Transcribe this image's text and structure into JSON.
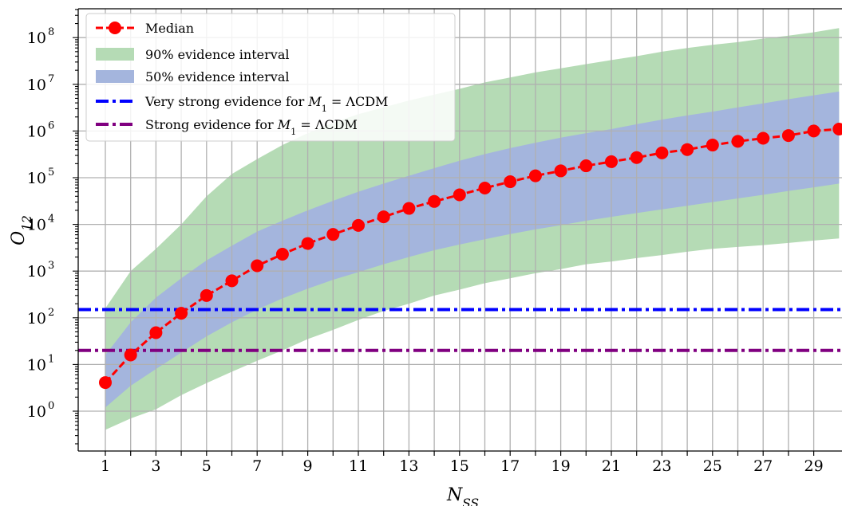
{
  "chart_data": {
    "type": "line",
    "xlabel": "N_SS",
    "ylabel": "O_12",
    "y_scale": "log",
    "xlim": [
      0,
      29.8
    ],
    "ylim_log10": [
      -0.95,
      8.6
    ],
    "grid": true,
    "legend_placement": "top-left",
    "x_ticks": [
      1,
      3,
      5,
      7,
      9,
      11,
      13,
      15,
      17,
      19,
      21,
      23,
      25,
      27,
      29
    ],
    "y_tick_exponents": [
      0,
      1,
      2,
      3,
      4,
      5,
      6,
      7,
      8
    ],
    "series": [
      {
        "name": "Median",
        "color": "#ff0000",
        "x": [
          1,
          2,
          3,
          4,
          5,
          6,
          7,
          8,
          9,
          10,
          11,
          12,
          13,
          14,
          15,
          16,
          17,
          18,
          19,
          20,
          21,
          22,
          23,
          24,
          25,
          26,
          27,
          28,
          29,
          30
        ],
        "y": [
          4.1,
          16,
          48,
          125,
          300,
          620,
          1300,
          2300,
          3900,
          6100,
          9500,
          14500,
          22000,
          31000,
          43000,
          60000,
          82000,
          110000,
          140000,
          180000,
          220000,
          270000,
          340000,
          400000,
          500000,
          600000,
          700000,
          800000,
          1000000,
          1100000
        ]
      }
    ],
    "bands": [
      {
        "name": "90% evidence interval",
        "color": "#b5dbb5",
        "x": [
          1,
          2,
          3,
          4,
          5,
          6,
          7,
          8,
          9,
          10,
          11,
          12,
          13,
          14,
          15,
          16,
          17,
          18,
          19,
          20,
          21,
          22,
          23,
          24,
          25,
          26,
          27,
          28,
          29,
          30
        ],
        "lower": [
          0.4,
          0.7,
          1.1,
          2.2,
          4.0,
          7.0,
          12,
          20,
          35,
          55,
          90,
          140,
          200,
          300,
          400,
          550,
          700,
          900,
          1100,
          1400,
          1600,
          1900,
          2200,
          2600,
          3000,
          3300,
          3600,
          4000,
          4500,
          5000
        ],
        "upper": [
          160,
          1000,
          3000,
          10000,
          40000,
          120000,
          250000,
          500000,
          900000,
          1500000,
          2300000,
          3200000,
          4500000,
          6000000,
          8000000,
          11000000,
          14000000,
          18000000,
          22000000,
          27000000,
          33000000,
          40000000,
          50000000,
          60000000,
          70000000,
          80000000,
          95000000,
          110000000,
          130000000,
          160000000
        ]
      },
      {
        "name": "50% evidence interval",
        "color": "#a4b5dd",
        "x": [
          1,
          2,
          3,
          4,
          5,
          6,
          7,
          8,
          9,
          10,
          11,
          12,
          13,
          14,
          15,
          16,
          17,
          18,
          19,
          20,
          21,
          22,
          23,
          24,
          25,
          26,
          27,
          28,
          29,
          30
        ],
        "lower": [
          1.2,
          3.5,
          8,
          18,
          40,
          80,
          150,
          260,
          420,
          650,
          950,
          1400,
          2000,
          2800,
          3700,
          4800,
          6200,
          7800,
          9600,
          12000,
          14500,
          17500,
          21000,
          25000,
          30000,
          36000,
          43000,
          52000,
          62000,
          75000
        ],
        "upper": [
          16,
          80,
          270,
          700,
          1700,
          3500,
          7000,
          12000,
          20000,
          32000,
          50000,
          75000,
          110000,
          160000,
          230000,
          320000,
          430000,
          560000,
          720000,
          900000,
          1100000,
          1400000,
          1750000,
          2150000,
          2600000,
          3200000,
          3900000,
          4800000,
          5800000,
          7000000
        ]
      }
    ],
    "reference_lines": [
      {
        "name": "Very strong evidence for M_1 = ΛCDM",
        "value": 150,
        "color": "#0000ff"
      },
      {
        "name": "Strong evidence for M_1 = ΛCDM",
        "value": 20,
        "color": "#800080"
      }
    ],
    "legend": [
      {
        "label": "Median",
        "kind": "line-marker",
        "color": "#ff0000"
      },
      {
        "label": "90% evidence interval",
        "kind": "patch",
        "color": "#b5dbb5"
      },
      {
        "label": "50% evidence interval",
        "kind": "patch",
        "color": "#a4b5dd"
      },
      {
        "label": "Very strong evidence for M_1 = ΛCDM",
        "kind": "dashdot",
        "color": "#0000ff"
      },
      {
        "label": "Strong evidence for M_1 = ΛCDM",
        "kind": "dashdot",
        "color": "#800080"
      }
    ]
  }
}
